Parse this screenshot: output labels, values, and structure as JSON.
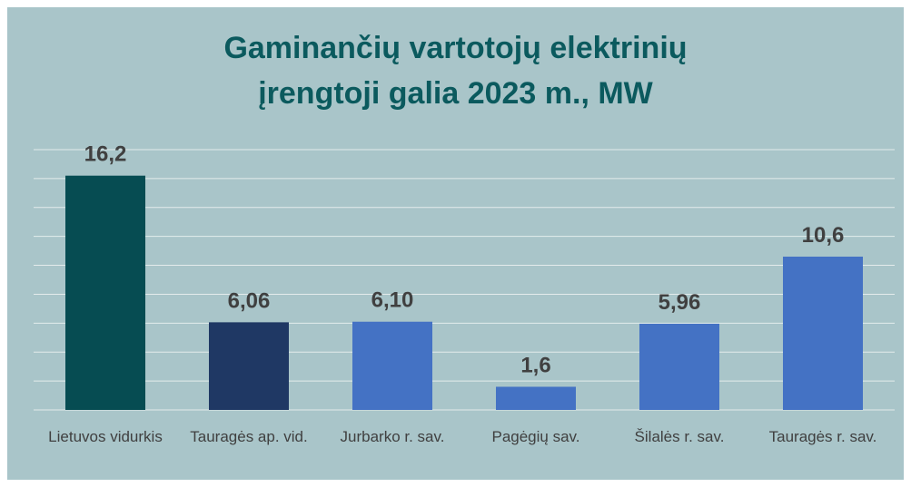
{
  "chart_data": {
    "type": "bar",
    "title": "Gaminančių vartotojų elektrinių įrengtoji galia 2023 m., MW",
    "categories": [
      "Lietuvos vidurkis",
      "Tauragės ap. vid.",
      "Jurbarko r. sav.",
      "Pagėgių sav.",
      "Šilalės r. sav.",
      "Tauragės r. sav."
    ],
    "values": [
      16.2,
      6.06,
      6.1,
      1.6,
      5.96,
      10.6
    ],
    "value_labels": [
      "16,2",
      "6,06",
      "6,10",
      "1,6",
      "5,96",
      "10,6"
    ],
    "colors": [
      "#064c52",
      "#1f3864",
      "#4472c4",
      "#4472c4",
      "#4472c4",
      "#4472c4"
    ],
    "ylim": [
      0,
      18
    ],
    "yticks": [
      0,
      2,
      4,
      6,
      8,
      10,
      12,
      14,
      16,
      18
    ],
    "grid": true
  }
}
